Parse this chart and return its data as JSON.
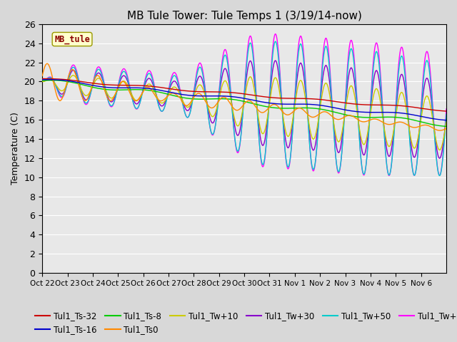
{
  "title": "MB Tule Tower: Tule Temps 1 (3/19/14-now)",
  "ylabel": "Temperature (C)",
  "watermark": "MB_tule",
  "ylim": [
    0,
    26
  ],
  "yticks": [
    0,
    2,
    4,
    6,
    8,
    10,
    12,
    14,
    16,
    18,
    20,
    22,
    24,
    26
  ],
  "xtick_labels": [
    "Oct 22",
    "Oct 23",
    "Oct 24",
    "Oct 25",
    "Oct 26",
    "Oct 27",
    "Oct 28",
    "Oct 29",
    "Oct 30",
    "Oct 31",
    "Nov 1",
    "Nov 2",
    "Nov 3",
    "Nov 4",
    "Nov 5",
    "Nov 6"
  ],
  "series_colors": {
    "Tul1_Ts-32": "#cc0000",
    "Tul1_Ts-16": "#0000cc",
    "Tul1_Ts-8": "#00cc00",
    "Tul1_Ts0": "#ff8800",
    "Tul1_Tw+10": "#cccc00",
    "Tul1_Tw+30": "#8800cc",
    "Tul1_Tw+50": "#00cccc",
    "Tul1_Tw+100": "#ff00ff"
  },
  "background_color": "#e8e8e8",
  "plot_bg_color": "#e8e8e8",
  "title_fontsize": 11,
  "axis_fontsize": 9,
  "legend_fontsize": 8.5,
  "n_days": 16,
  "pts_per_day": 96
}
